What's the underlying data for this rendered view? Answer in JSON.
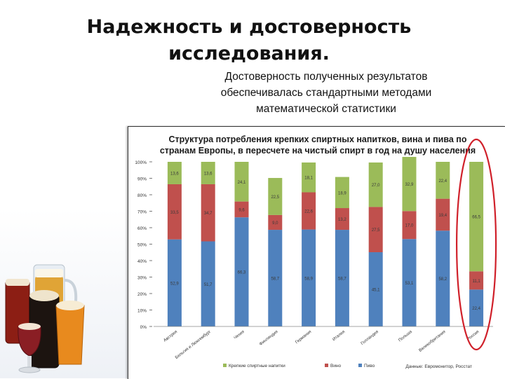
{
  "slide": {
    "title": "Надежность и достоверность исследования.",
    "subtitle": "Достоверность полученных результатов обеспечивалась стандартными методами математической статистики"
  },
  "colors": {
    "spirits": "#4f81bd",
    "wine": "#c0504d",
    "beer": "#9bbb59",
    "highlight": "#d0202a"
  },
  "chart_data": {
    "type": "bar",
    "stacked": true,
    "title": "Структура потребления крепких спиртных напитков, вина и пива по странам Европы, в пересчете на чистый спирт в год на душу населения",
    "categories": [
      "Австрия",
      "Бельгия и Люксембург",
      "Чехия",
      "Финляндия",
      "Германия",
      "Италия",
      "Голландия",
      "Польша",
      "Великобритания",
      "Россия"
    ],
    "series": [
      {
        "name": "Крепкие спиртные напитки",
        "color": "#9bbb59",
        "values": [
          13.6,
          13.6,
          24.1,
          22.5,
          18.1,
          18.9,
          27.0,
          32.9,
          22.4,
          66.5
        ]
      },
      {
        "name": "Вино",
        "color": "#c0504d",
        "values": [
          33.5,
          34.7,
          9.6,
          9.0,
          22.6,
          13.2,
          27.5,
          17.0,
          19.4,
          11.1
        ]
      },
      {
        "name": "Пиво",
        "color": "#4f81bd",
        "values": [
          52.9,
          51.7,
          66.3,
          58.7,
          58.9,
          58.7,
          45.1,
          53.1,
          58.2,
          22.4
        ]
      }
    ],
    "value_labels": {
      "top": [
        "13,6",
        "13,6",
        "24,1",
        "22,5",
        "18,1",
        "18,9",
        "27,0",
        "32,9",
        "22,4",
        "66,5"
      ],
      "middle": [
        "33,5",
        "34,7",
        "9,6",
        "9,0",
        "22,6",
        "13,2",
        "27,5",
        "17,0",
        "19,4",
        "11,1"
      ],
      "bottom": [
        "52,9",
        "51,7",
        "66,3",
        "58,7",
        "58,9",
        "58,7",
        "45,1",
        "53,1",
        "58,2",
        "22,4"
      ]
    },
    "y_ticks": [
      "0%",
      "10%",
      "20%",
      "30%",
      "40%",
      "50%",
      "60%",
      "70%",
      "80%",
      "90%",
      "100%"
    ],
    "ylim": [
      0,
      100
    ],
    "legend": {
      "position": "bottom",
      "items": [
        {
          "label": "Крепкие спиртные напитки",
          "color": "#9bbb59"
        },
        {
          "label": "Вино",
          "color": "#c0504d"
        },
        {
          "label": "Пиво",
          "color": "#4f81bd"
        }
      ]
    },
    "source": "Данные: Евромонитор, Росстат",
    "highlighted_category": "Россия"
  }
}
